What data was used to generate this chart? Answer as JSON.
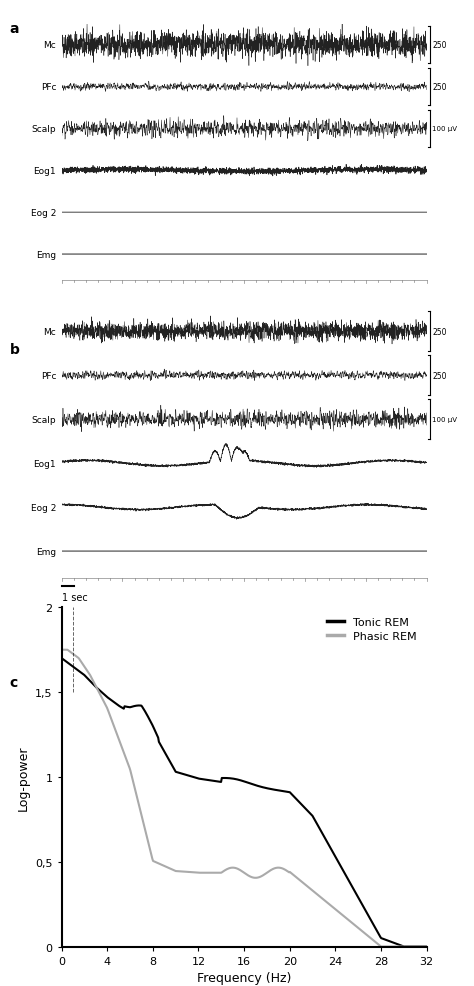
{
  "panel_a_label": "a",
  "panel_b_label": "b",
  "panel_c_label": "c",
  "channels": [
    "Mc",
    "PFc",
    "Scalp",
    "Eog1",
    "Eog 2",
    "Emg"
  ],
  "scale_bars_a": {
    "Mc": "250",
    "PFc": "250",
    "Scalp": "100 μV"
  },
  "scale_bars_b": {
    "Mc": "250",
    "PFc": "250",
    "Scalp": "100 μV"
  },
  "time_label": "1 sec",
  "xlabel_c": "Frequency (Hz)",
  "ylabel_c": "Log-power",
  "xticks_c": [
    0,
    4,
    8,
    12,
    16,
    20,
    24,
    28,
    32
  ],
  "yticks_c": [
    0,
    0.5,
    1,
    1.5,
    2
  ],
  "ytick_labels_c": [
    "0",
    "0,5",
    "1",
    "1,5",
    "2"
  ],
  "xlim_c": [
    0,
    32
  ],
  "ylim_c": [
    0,
    2
  ],
  "tonic_color": "#000000",
  "phasic_color": "#aaaaaa",
  "legend_tonic": "Tonic REM",
  "legend_phasic": "Phasic REM",
  "bg_color": "#ffffff",
  "signal_color": "#222222"
}
